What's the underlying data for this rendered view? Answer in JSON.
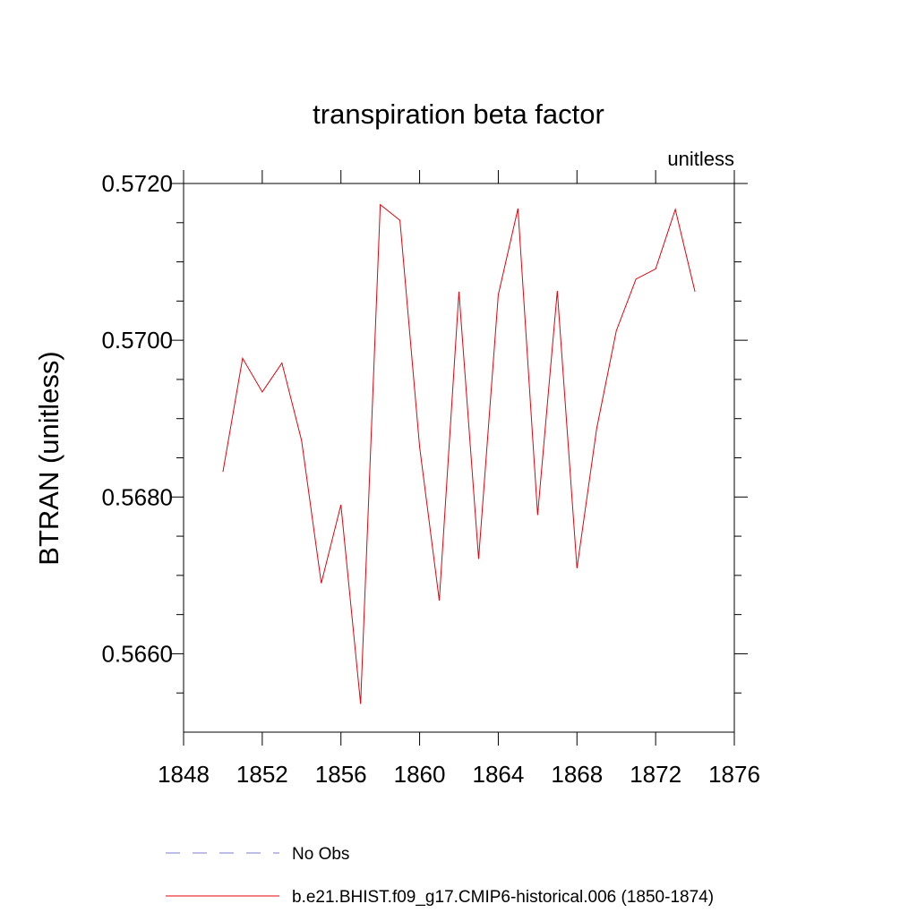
{
  "chart_data": {
    "type": "line",
    "title": "transpiration beta factor",
    "subtitle": "unitless",
    "y_label": "BTRAN  (unitless)",
    "x": [
      1850,
      1851,
      1852,
      1853,
      1854,
      1855,
      1856,
      1857,
      1858,
      1859,
      1860,
      1861,
      1862,
      1863,
      1864,
      1865,
      1866,
      1867,
      1868,
      1869,
      1870,
      1871,
      1872,
      1873,
      1874
    ],
    "series": [
      {
        "name": "b.e21.BHIST.f09_g17.CMIP6-historical.006 (1850-1874)",
        "color": "#e8000b",
        "values": [
          0.56832,
          0.56977,
          0.56934,
          0.56971,
          0.56872,
          0.5669,
          0.5679,
          0.56536,
          0.57173,
          0.57153,
          0.56864,
          0.56668,
          0.57062,
          0.56721,
          0.57058,
          0.57168,
          0.56777,
          0.57063,
          0.56709,
          0.56887,
          0.57012,
          0.57078,
          0.57091,
          0.57167,
          0.57062
        ]
      }
    ],
    "legend_extra": [
      {
        "name": "No Obs",
        "color": "#7b7bd0",
        "dash": true
      }
    ],
    "xlim": [
      1848,
      1876
    ],
    "xticks": [
      1848,
      1852,
      1856,
      1860,
      1864,
      1868,
      1872,
      1876
    ],
    "ylim": [
      0.565,
      0.572
    ],
    "yticks": [
      {
        "value": 0.566,
        "label": "0.5660"
      },
      {
        "value": 0.568,
        "label": "0.5680"
      },
      {
        "value": 0.57,
        "label": "0.5700"
      },
      {
        "value": 0.572,
        "label": "0.5720"
      }
    ]
  }
}
